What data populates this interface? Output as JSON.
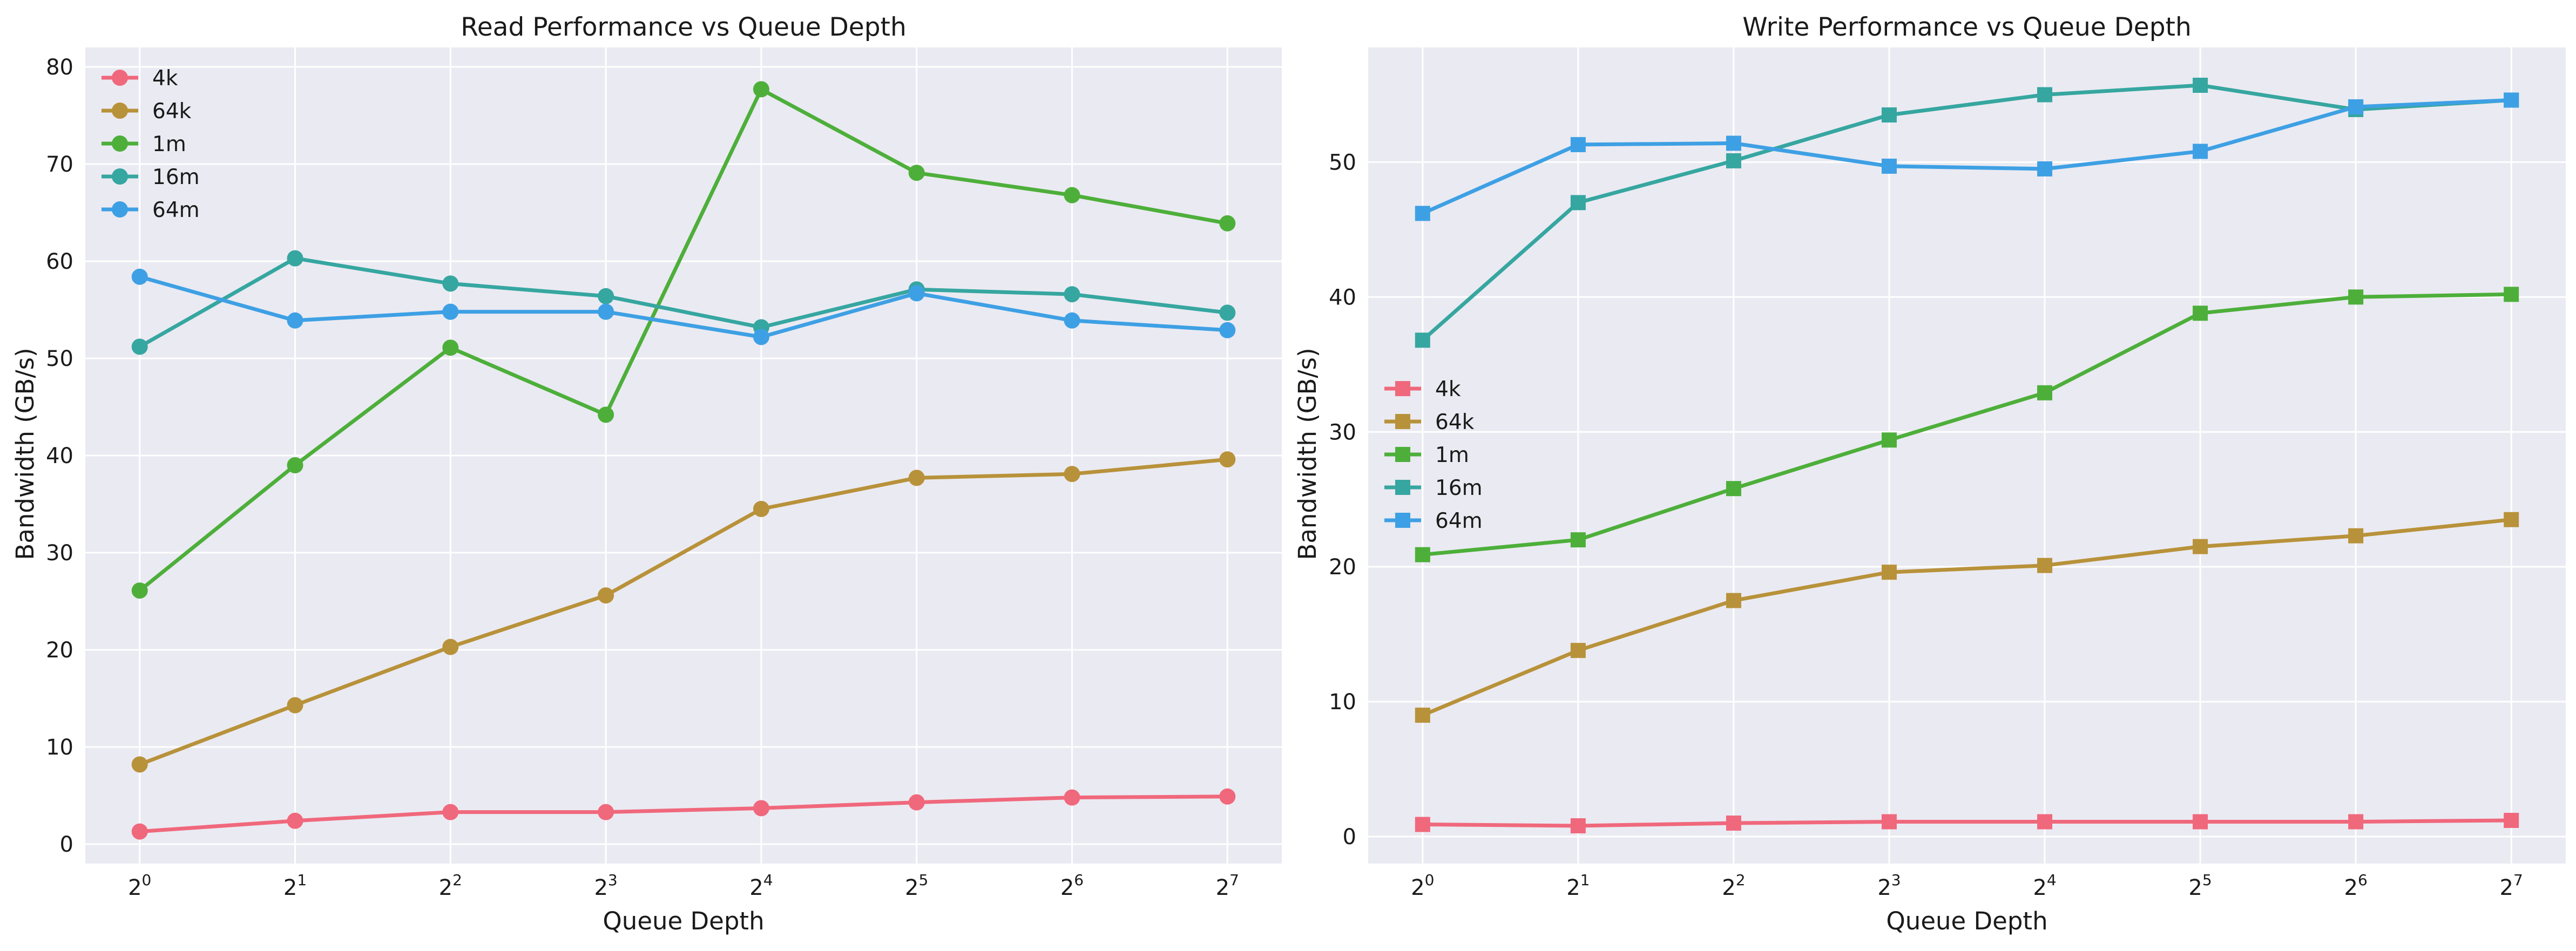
{
  "chart_data": [
    {
      "type": "line",
      "title": "Read Performance vs Queue Depth",
      "xlabel": "Queue Depth",
      "ylabel": "Bandwidth (GB/s)",
      "xscale": "log2",
      "x": [
        1,
        2,
        4,
        8,
        16,
        32,
        64,
        128
      ],
      "xtick_base": "2",
      "xtick_exponents": [
        "0",
        "1",
        "2",
        "3",
        "4",
        "5",
        "6",
        "7"
      ],
      "ylim": [
        -2,
        82
      ],
      "yticks": [
        0,
        10,
        20,
        30,
        40,
        50,
        60,
        70,
        80
      ],
      "marker": "circle",
      "legend_position": "upper-left",
      "grid": true,
      "series": [
        {
          "name": "4k",
          "color": "#f0687c",
          "values": [
            1.3,
            2.4,
            3.3,
            3.3,
            3.7,
            4.3,
            4.8,
            4.9
          ]
        },
        {
          "name": "64k",
          "color": "#b8923a",
          "values": [
            8.2,
            14.3,
            20.3,
            25.6,
            34.5,
            37.7,
            38.1,
            39.6
          ]
        },
        {
          "name": "1m",
          "color": "#4daf3a",
          "values": [
            26.1,
            39.0,
            51.1,
            44.2,
            77.7,
            69.1,
            66.8,
            63.9
          ]
        },
        {
          "name": "16m",
          "color": "#36a6a0",
          "values": [
            51.2,
            60.3,
            57.7,
            56.4,
            53.2,
            57.1,
            56.6,
            54.7
          ]
        },
        {
          "name": "64m",
          "color": "#3ea0e4",
          "values": [
            58.4,
            53.9,
            54.8,
            54.8,
            52.2,
            56.7,
            53.9,
            52.9
          ]
        }
      ]
    },
    {
      "type": "line",
      "title": "Write Performance vs Queue Depth",
      "xlabel": "Queue Depth",
      "ylabel": "Bandwidth (GB/s)",
      "xscale": "log2",
      "x": [
        1,
        2,
        4,
        8,
        16,
        32,
        64,
        128
      ],
      "xtick_base": "2",
      "xtick_exponents": [
        "0",
        "1",
        "2",
        "3",
        "4",
        "5",
        "6",
        "7"
      ],
      "ylim": [
        -2,
        58.5
      ],
      "yticks": [
        0,
        10,
        20,
        30,
        40,
        50
      ],
      "marker": "square",
      "legend_position": "center-left",
      "grid": true,
      "series": [
        {
          "name": "4k",
          "color": "#f0687c",
          "values": [
            0.9,
            0.8,
            1.0,
            1.1,
            1.1,
            1.1,
            1.1,
            1.2
          ]
        },
        {
          "name": "64k",
          "color": "#b8923a",
          "values": [
            9.0,
            13.8,
            17.5,
            19.6,
            20.1,
            21.5,
            22.3,
            23.5
          ]
        },
        {
          "name": "1m",
          "color": "#4daf3a",
          "values": [
            20.9,
            22.0,
            25.8,
            29.4,
            32.9,
            38.8,
            40.0,
            40.2
          ]
        },
        {
          "name": "16m",
          "color": "#36a6a0",
          "values": [
            36.8,
            47.0,
            50.1,
            53.5,
            55.0,
            55.7,
            53.9,
            54.6
          ]
        },
        {
          "name": "64m",
          "color": "#3ea0e4",
          "values": [
            46.2,
            51.3,
            51.4,
            49.7,
            49.5,
            50.8,
            54.1,
            54.6
          ]
        }
      ]
    }
  ]
}
